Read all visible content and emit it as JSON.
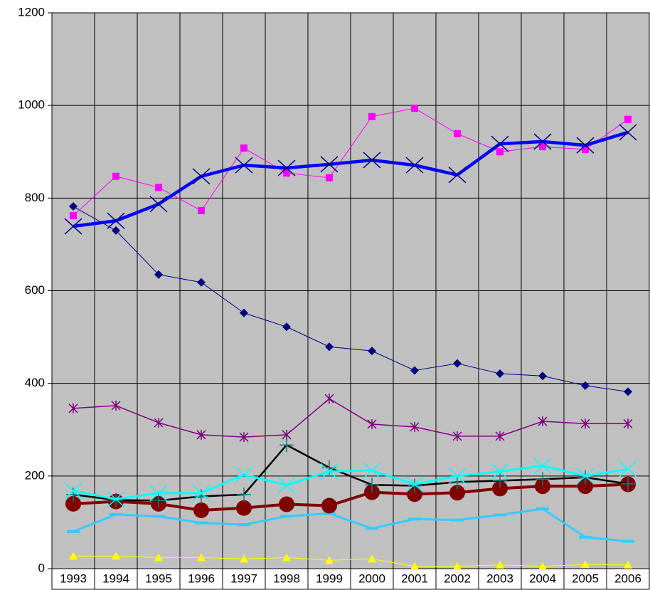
{
  "chart_data": {
    "type": "line",
    "categories": [
      "1993",
      "1994",
      "1995",
      "1996",
      "1997",
      "1998",
      "1999",
      "2000",
      "2001",
      "2002",
      "2003",
      "2004",
      "2005",
      "2006"
    ],
    "ylim": [
      0,
      1200
    ],
    "yticks": [
      0,
      200,
      400,
      600,
      800,
      1000,
      1200
    ],
    "grid": true,
    "series": [
      {
        "color": "#ffff00",
        "marker": "triangle",
        "width": 1,
        "values": [
          27,
          27,
          24,
          24,
          21,
          24,
          18,
          21,
          5,
          5,
          8,
          5,
          9,
          8
        ]
      },
      {
        "color": "#33ccff",
        "marker": "dash",
        "width": 3,
        "values": [
          80,
          117,
          113,
          99,
          95,
          113,
          119,
          87,
          107,
          105,
          116,
          129,
          68,
          59
        ]
      },
      {
        "color": "#800000",
        "marker": "circle",
        "width": 4,
        "values": [
          140,
          145,
          140,
          126,
          131,
          139,
          136,
          165,
          161,
          164,
          173,
          178,
          178,
          182
        ]
      },
      {
        "color": "#000000",
        "marker": "plus",
        "width": 2.5,
        "values": [
          160,
          148,
          147,
          156,
          160,
          267,
          218,
          181,
          179,
          187,
          190,
          193,
          197,
          183
        ]
      },
      {
        "color": "#00ffff",
        "marker": "x",
        "width": 3,
        "values": [
          168,
          150,
          163,
          163,
          203,
          180,
          210,
          212,
          182,
          200,
          210,
          222,
          200,
          215
        ]
      },
      {
        "color": "#800080",
        "marker": "asterisk",
        "width": 1.5,
        "values": [
          346,
          352,
          315,
          289,
          284,
          289,
          367,
          312,
          306,
          286,
          286,
          318,
          313,
          313
        ]
      },
      {
        "color": "#000080",
        "marker": "diamond",
        "width": 1,
        "values": [
          782,
          730,
          635,
          618,
          552,
          522,
          479,
          470,
          428,
          443,
          421,
          416,
          395,
          382
        ]
      },
      {
        "color": "#ff00ff",
        "marker": "square",
        "width": 1,
        "values": [
          762,
          847,
          823,
          773,
          908,
          854,
          844,
          976,
          994,
          939,
          900,
          911,
          905,
          970
        ]
      },
      {
        "color": "#0000ff",
        "marker": "x",
        "width": 4.5,
        "values": [
          739,
          751,
          787,
          847,
          871,
          865,
          873,
          882,
          871,
          850,
          917,
          922,
          914,
          942
        ]
      }
    ]
  }
}
